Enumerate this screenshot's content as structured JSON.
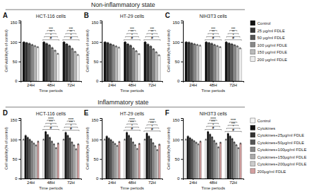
{
  "chart_data": [
    {
      "type": "bar",
      "title": "HCT-116 cells",
      "subtitle": "Non-inflammatory state",
      "xlabel": "Time periods",
      "ylabel": "Cell viability(% of control)",
      "categories": [
        "24H",
        "48H",
        "72H"
      ],
      "ylim": [
        0,
        155
      ],
      "yticks": [
        0,
        50,
        100,
        150
      ],
      "series": [
        {
          "name": "Control",
          "color": "#111111",
          "values": [
            100,
            100,
            100
          ],
          "errors": [
            1.5,
            1.5,
            1.5
          ]
        },
        {
          "name": "25 μg/ml FDLE",
          "color": "#333333",
          "values": [
            98,
            96,
            95
          ],
          "errors": [
            1.5,
            1.5,
            1.5
          ]
        },
        {
          "name": "50 μg/ml FDLE",
          "color": "#555555",
          "values": [
            96,
            92,
            90
          ],
          "errors": [
            1.5,
            1.5,
            1.5
          ]
        },
        {
          "name": "100 μg/ml FDLE",
          "color": "#888888",
          "values": [
            93,
            85,
            83
          ],
          "errors": [
            1.5,
            1.5,
            1.5
          ]
        },
        {
          "name": "150 μg/ml FDLE",
          "color": "#bbbbbb",
          "values": [
            90,
            78,
            75
          ],
          "errors": [
            1.5,
            1.5,
            1.5
          ]
        },
        {
          "name": "200 μg/ml FDLE",
          "color": "#eeeeee",
          "values": [
            87,
            70,
            67
          ],
          "errors": [
            1.5,
            1.5,
            1.5
          ]
        }
      ],
      "annotations": [
        {
          "text": "A"
        },
        {
          "text": "#",
          "x": "48H"
        },
        {
          "text": "*",
          "x": "48H"
        },
        {
          "text": "**",
          "x": "48H"
        },
        {
          "text": "***",
          "x": "48H"
        },
        {
          "text": "#",
          "x": "72H"
        },
        {
          "text": "*",
          "x": "72H"
        },
        {
          "text": "**",
          "x": "72H"
        },
        {
          "text": "***",
          "x": "72H"
        }
      ]
    },
    {
      "type": "bar",
      "title": "HT-29 cells",
      "xlabel": "Time periods",
      "ylabel": "Cell viability(% of control)",
      "categories": [
        "24H",
        "48H",
        "72H"
      ],
      "ylim": [
        0,
        155
      ],
      "yticks": [
        0,
        50,
        100,
        150
      ],
      "series": [
        {
          "name": "Control",
          "color": "#111111",
          "values": [
            100,
            100,
            100
          ],
          "errors": [
            1.5,
            1.5,
            1.5
          ]
        },
        {
          "name": "25 μg/ml FDLE",
          "color": "#333333",
          "values": [
            98,
            95,
            94
          ],
          "errors": [
            1.5,
            1.5,
            1.5
          ]
        },
        {
          "name": "50 μg/ml FDLE",
          "color": "#555555",
          "values": [
            95,
            91,
            89
          ],
          "errors": [
            1.5,
            1.5,
            1.5
          ]
        },
        {
          "name": "100 μg/ml FDLE",
          "color": "#888888",
          "values": [
            92,
            84,
            82
          ],
          "errors": [
            1.5,
            1.5,
            1.5
          ]
        },
        {
          "name": "150 μg/ml FDLE",
          "color": "#bbbbbb",
          "values": [
            89,
            77,
            74
          ],
          "errors": [
            1.5,
            1.5,
            1.5
          ]
        },
        {
          "name": "200 μg/ml FDLE",
          "color": "#eeeeee",
          "values": [
            86,
            69,
            66
          ],
          "errors": [
            1.5,
            1.5,
            1.5
          ]
        }
      ],
      "annotations": [
        {
          "text": "B"
        },
        {
          "text": "#",
          "x": "48H"
        },
        {
          "text": "*",
          "x": "48H"
        },
        {
          "text": "**",
          "x": "48H"
        },
        {
          "text": "***",
          "x": "48H"
        },
        {
          "text": "#",
          "x": "72H"
        },
        {
          "text": "*",
          "x": "72H"
        },
        {
          "text": "**",
          "x": "72H"
        },
        {
          "text": "***",
          "x": "72H"
        }
      ]
    },
    {
      "type": "bar",
      "title": "NIH3T3 cells",
      "xlabel": "Time periods",
      "ylabel": "Cell viability(% of control)",
      "categories": [
        "24H",
        "48H",
        "72H"
      ],
      "ylim": [
        0,
        155
      ],
      "yticks": [
        0,
        50,
        100,
        150
      ],
      "legend": "right",
      "series": [
        {
          "name": "Control",
          "color": "#111111",
          "values": [
            100,
            100,
            100
          ],
          "errors": [
            1.5,
            1.5,
            1.5
          ]
        },
        {
          "name": "25 μg/ml FDLE",
          "color": "#333333",
          "values": [
            99,
            98,
            97
          ],
          "errors": [
            1.5,
            1.5,
            1.5
          ]
        },
        {
          "name": "50 μg/ml FDLE",
          "color": "#555555",
          "values": [
            97,
            96,
            95
          ],
          "errors": [
            1.5,
            1.5,
            1.5
          ]
        },
        {
          "name": "100 μg/ml FDLE",
          "color": "#888888",
          "values": [
            95,
            93,
            92
          ],
          "errors": [
            1.5,
            1.5,
            1.5
          ]
        },
        {
          "name": "150 μg/ml FDLE",
          "color": "#bbbbbb",
          "values": [
            93,
            90,
            89
          ],
          "errors": [
            1.5,
            1.5,
            1.5
          ]
        },
        {
          "name": "200 μg/ml FDLE",
          "color": "#eeeeee",
          "values": [
            91,
            87,
            84
          ],
          "errors": [
            1.5,
            1.5,
            1.5
          ]
        }
      ],
      "annotations": [
        {
          "text": "C"
        },
        {
          "text": "#",
          "x": "48H"
        },
        {
          "text": "*",
          "x": "48H"
        },
        {
          "text": "**",
          "x": "48H"
        },
        {
          "text": "***",
          "x": "48H"
        },
        {
          "text": "#",
          "x": "72H"
        },
        {
          "text": "*",
          "x": "72H"
        },
        {
          "text": "**",
          "x": "72H"
        },
        {
          "text": "***",
          "x": "72H"
        }
      ]
    },
    {
      "type": "bar",
      "title": "HCT-116 cells",
      "subtitle": "Inflammatory state",
      "xlabel": "Time periods",
      "ylabel": "Cell viability(% of control)",
      "categories": [
        "24H",
        "48H",
        "72H"
      ],
      "ylim": [
        0,
        155
      ],
      "yticks": [
        0,
        50,
        100,
        150
      ],
      "series": [
        {
          "name": "Control",
          "color": "#f5f5f5",
          "values": [
            100,
            100,
            100
          ],
          "errors": [
            1.5,
            1.5,
            1.5
          ]
        },
        {
          "name": "Cytokines",
          "color": "#111111",
          "values": [
            110,
            120,
            118
          ],
          "errors": [
            1.5,
            1.5,
            1.5
          ]
        },
        {
          "name": "Cytokines+25μg/ml FDLE",
          "color": "#333333",
          "values": [
            105,
            112,
            110
          ],
          "errors": [
            1.5,
            1.5,
            1.5
          ]
        },
        {
          "name": "Cytokines+50μg/ml FDLE",
          "color": "#555555",
          "values": [
            100,
            105,
            103
          ],
          "errors": [
            1.5,
            1.5,
            1.5
          ]
        },
        {
          "name": "Cytokines+100μg/ml FDLE",
          "color": "#888888",
          "values": [
            95,
            95,
            93
          ],
          "errors": [
            1.5,
            1.5,
            1.5
          ]
        },
        {
          "name": "Cytokines+150μg/ml FDLE",
          "color": "#aaaaaa",
          "values": [
            90,
            88,
            85
          ],
          "errors": [
            1.5,
            1.5,
            1.5
          ]
        },
        {
          "name": "Cytokines+200μg/ml FDLE",
          "color": "#cccccc",
          "values": [
            85,
            78,
            75
          ],
          "errors": [
            1.5,
            1.5,
            1.5
          ]
        },
        {
          "name": "200μg/ml FDLE",
          "color": "#d4a0a0",
          "values": [
            95,
            90,
            88
          ],
          "errors": [
            1.5,
            1.5,
            1.5
          ]
        }
      ],
      "annotations": [
        {
          "text": "D"
        },
        {
          "text": "#",
          "x": "48H"
        },
        {
          "text": "*",
          "x": "48H"
        },
        {
          "text": "***",
          "x": "48H"
        },
        {
          "text": "****",
          "x": "48H"
        },
        {
          "text": "#",
          "x": "72H"
        },
        {
          "text": "*",
          "x": "72H"
        },
        {
          "text": "***",
          "x": "72H"
        },
        {
          "text": "****",
          "x": "72H"
        }
      ]
    },
    {
      "type": "bar",
      "title": "HT-29 cells",
      "xlabel": "Time periods",
      "ylabel": "Cell viability(% of control)",
      "categories": [
        "24H",
        "48H",
        "72H"
      ],
      "ylim": [
        0,
        155
      ],
      "yticks": [
        0,
        50,
        100,
        150
      ],
      "series": [
        {
          "name": "Control",
          "color": "#f5f5f5",
          "values": [
            100,
            100,
            100
          ],
          "errors": [
            1.5,
            1.5,
            1.5
          ]
        },
        {
          "name": "Cytokines",
          "color": "#111111",
          "values": [
            108,
            118,
            116
          ],
          "errors": [
            1.5,
            1.5,
            1.5
          ]
        },
        {
          "name": "Cytokines+25μg/ml FDLE",
          "color": "#333333",
          "values": [
            103,
            110,
            108
          ],
          "errors": [
            1.5,
            1.5,
            1.5
          ]
        },
        {
          "name": "Cytokines+50μg/ml FDLE",
          "color": "#555555",
          "values": [
            99,
            103,
            101
          ],
          "errors": [
            1.5,
            1.5,
            1.5
          ]
        },
        {
          "name": "Cytokines+100μg/ml FDLE",
          "color": "#888888",
          "values": [
            94,
            93,
            91
          ],
          "errors": [
            1.5,
            1.5,
            1.5
          ]
        },
        {
          "name": "Cytokines+150μg/ml FDLE",
          "color": "#aaaaaa",
          "values": [
            89,
            86,
            83
          ],
          "errors": [
            1.5,
            1.5,
            1.5
          ]
        },
        {
          "name": "Cytokines+200μg/ml FDLE",
          "color": "#cccccc",
          "values": [
            84,
            76,
            73
          ],
          "errors": [
            1.5,
            1.5,
            1.5
          ]
        },
        {
          "name": "200μg/ml FDLE",
          "color": "#d4a0a0",
          "values": [
            94,
            89,
            87
          ],
          "errors": [
            1.5,
            1.5,
            1.5
          ]
        }
      ],
      "annotations": [
        {
          "text": "E"
        },
        {
          "text": "#",
          "x": "48H"
        },
        {
          "text": "*",
          "x": "48H"
        },
        {
          "text": "***",
          "x": "48H"
        },
        {
          "text": "****",
          "x": "48H"
        },
        {
          "text": "#",
          "x": "72H"
        },
        {
          "text": "*",
          "x": "72H"
        },
        {
          "text": "***",
          "x": "72H"
        },
        {
          "text": "****",
          "x": "72H"
        }
      ]
    },
    {
      "type": "bar",
      "title": "NIH3T3 cells",
      "xlabel": "Time periods",
      "ylabel": "Cell viability(% of control)",
      "categories": [
        "24H",
        "48H",
        "72H"
      ],
      "ylim": [
        0,
        155
      ],
      "yticks": [
        0,
        50,
        100,
        150
      ],
      "legend": "right",
      "series": [
        {
          "name": "Control",
          "color": "#f5f5f5",
          "values": [
            100,
            100,
            100
          ],
          "errors": [
            1.5,
            1.5,
            1.5
          ]
        },
        {
          "name": "Cytokines",
          "color": "#111111",
          "values": [
            108,
            120,
            115
          ],
          "errors": [
            1.5,
            1.5,
            1.5
          ]
        },
        {
          "name": "Cytokines+25μg/ml FDLE",
          "color": "#333333",
          "values": [
            104,
            113,
            108
          ],
          "errors": [
            1.5,
            1.5,
            1.5
          ]
        },
        {
          "name": "Cytokines+50μg/ml FDLE",
          "color": "#555555",
          "values": [
            100,
            106,
            102
          ],
          "errors": [
            1.5,
            1.5,
            1.5
          ]
        },
        {
          "name": "Cytokines+100μg/ml FDLE",
          "color": "#888888",
          "values": [
            96,
            97,
            93
          ],
          "errors": [
            1.5,
            1.5,
            1.5
          ]
        },
        {
          "name": "Cytokines+150μg/ml FDLE",
          "color": "#aaaaaa",
          "values": [
            92,
            90,
            86
          ],
          "errors": [
            1.5,
            1.5,
            1.5
          ]
        },
        {
          "name": "Cytokines+200μg/ml FDLE",
          "color": "#cccccc",
          "values": [
            88,
            80,
            78
          ],
          "errors": [
            1.5,
            1.5,
            1.5
          ]
        },
        {
          "name": "200μg/ml FDLE",
          "color": "#d4a0a0",
          "values": [
            95,
            92,
            90
          ],
          "errors": [
            1.5,
            1.5,
            1.5
          ]
        }
      ],
      "annotations": [
        {
          "text": "F"
        },
        {
          "text": "#",
          "x": "48H"
        },
        {
          "text": "*",
          "x": "48H"
        },
        {
          "text": "***",
          "x": "48H"
        },
        {
          "text": "****",
          "x": "48H"
        },
        {
          "text": "#",
          "x": "72H"
        },
        {
          "text": "*",
          "x": "72H"
        },
        {
          "text": "***",
          "x": "72H"
        },
        {
          "text": "****",
          "x": "72H"
        }
      ]
    }
  ]
}
